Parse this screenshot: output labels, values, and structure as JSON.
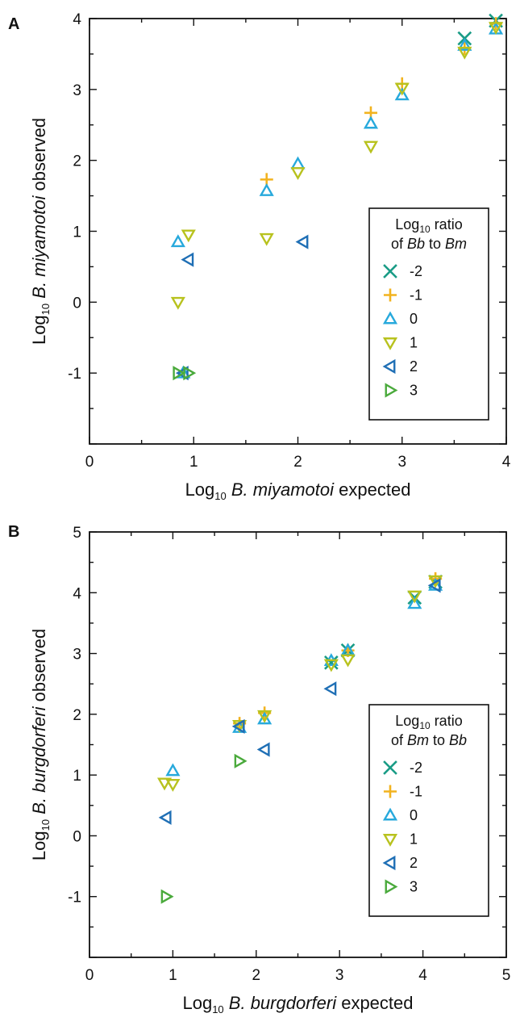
{
  "legend_styles": [
    {
      "key": "-2",
      "marker": "x-cross",
      "color": "#1a9c86"
    },
    {
      "key": "-1",
      "marker": "plus",
      "color": "#f2b31f"
    },
    {
      "key": "0",
      "marker": "triangle-up",
      "color": "#27a9dc"
    },
    {
      "key": "1",
      "marker": "triangle-down",
      "color": "#b8c21e"
    },
    {
      "key": "2",
      "marker": "triangle-left",
      "color": "#1f6fb5"
    },
    {
      "key": "3",
      "marker": "triangle-right",
      "color": "#4aaa3c"
    }
  ],
  "chart_data": [
    {
      "type": "scatter",
      "panel": "A",
      "xlabel": {
        "prefix": "Log",
        "sub": "10",
        "italic": "B. miyamotoi",
        "suffix": " expected"
      },
      "ylabel": {
        "prefix": "Log",
        "sub": "10",
        "italic": "B. miyamotoi",
        "suffix": " observed"
      },
      "xlim": [
        0,
        4
      ],
      "ylim": [
        -2,
        4
      ],
      "xticks": [
        0,
        1,
        2,
        3,
        4
      ],
      "yticks": [
        -1,
        0,
        1,
        2,
        3,
        4
      ],
      "grid": false,
      "legend_position": "bottom-right",
      "legend": {
        "line1": {
          "prefix": "Log",
          "sub": "10",
          "suffix": " ratio"
        },
        "line2": {
          "pre": "of ",
          "a": "Bb",
          "mid": " to ",
          "b": "Bm"
        }
      },
      "series": [
        {
          "name": "-2",
          "points": [
            [
              3.6,
              3.72
            ],
            [
              3.9,
              3.97
            ]
          ]
        },
        {
          "name": "-1",
          "points": [
            [
              1.7,
              1.73
            ],
            [
              2.7,
              2.67
            ],
            [
              3.0,
              3.08
            ],
            [
              3.6,
              3.58
            ],
            [
              3.9,
              3.93
            ]
          ]
        },
        {
          "name": "0",
          "points": [
            [
              0.85,
              0.85
            ],
            [
              0.9,
              -1.0
            ],
            [
              1.7,
              1.57
            ],
            [
              2.0,
              1.95
            ],
            [
              2.7,
              2.52
            ],
            [
              3.0,
              2.92
            ],
            [
              3.6,
              3.62
            ],
            [
              3.9,
              3.85
            ]
          ]
        },
        {
          "name": "1",
          "points": [
            [
              0.85,
              0.0
            ],
            [
              0.95,
              0.95
            ],
            [
              1.7,
              0.9
            ],
            [
              2.0,
              1.83
            ],
            [
              2.7,
              2.2
            ],
            [
              3.0,
              3.02
            ],
            [
              3.6,
              3.53
            ],
            [
              3.9,
              3.88
            ]
          ]
        },
        {
          "name": "2",
          "points": [
            [
              0.95,
              0.6
            ],
            [
              0.9,
              -1.0
            ],
            [
              2.05,
              0.85
            ]
          ]
        },
        {
          "name": "3",
          "points": [
            [
              0.85,
              -1.0
            ],
            [
              0.95,
              -1.0
            ]
          ]
        }
      ]
    },
    {
      "type": "scatter",
      "panel": "B",
      "xlabel": {
        "prefix": "Log",
        "sub": "10",
        "italic": "B. burgdorferi",
        "suffix": " expected"
      },
      "ylabel": {
        "prefix": "Log",
        "sub": "10",
        "italic": "B. burgdorferi",
        "suffix": " observed"
      },
      "xlim": [
        0,
        5
      ],
      "ylim": [
        -2,
        5
      ],
      "xticks": [
        0,
        1,
        2,
        3,
        4,
        5
      ],
      "yticks": [
        -1,
        0,
        1,
        2,
        3,
        4,
        5
      ],
      "grid": false,
      "legend_position": "bottom-right",
      "legend": {
        "line1": {
          "prefix": "Log",
          "sub": "10",
          "suffix": " ratio"
        },
        "line2": {
          "pre": "of ",
          "a": "Bm",
          "mid": " to ",
          "b": "Bb"
        }
      },
      "series": [
        {
          "name": "-2",
          "points": [
            [
              2.9,
              2.85
            ],
            [
              3.1,
              3.05
            ],
            [
              3.9,
              3.92
            ],
            [
              4.15,
              4.18
            ]
          ]
        },
        {
          "name": "-1",
          "points": [
            [
              1.8,
              1.85
            ],
            [
              2.1,
              2.02
            ],
            [
              3.1,
              3.05
            ],
            [
              4.15,
              4.23
            ]
          ]
        },
        {
          "name": "0",
          "points": [
            [
              1.0,
              1.07
            ],
            [
              1.8,
              1.78
            ],
            [
              2.1,
              1.92
            ],
            [
              2.9,
              2.88
            ],
            [
              3.1,
              3.05
            ],
            [
              3.9,
              3.82
            ],
            [
              4.15,
              4.12
            ]
          ]
        },
        {
          "name": "1",
          "points": [
            [
              0.9,
              0.87
            ],
            [
              1.0,
              0.85
            ],
            [
              1.8,
              1.82
            ],
            [
              2.1,
              1.98
            ],
            [
              2.9,
              2.82
            ],
            [
              3.1,
              2.9
            ],
            [
              3.9,
              3.95
            ],
            [
              4.15,
              4.2
            ]
          ]
        },
        {
          "name": "2",
          "points": [
            [
              0.92,
              0.3
            ],
            [
              1.8,
              1.8
            ],
            [
              2.1,
              1.42
            ],
            [
              2.9,
              2.42
            ],
            [
              4.15,
              4.12
            ]
          ]
        },
        {
          "name": "3",
          "points": [
            [
              0.92,
              -1.0
            ],
            [
              1.8,
              1.23
            ]
          ]
        }
      ]
    }
  ]
}
